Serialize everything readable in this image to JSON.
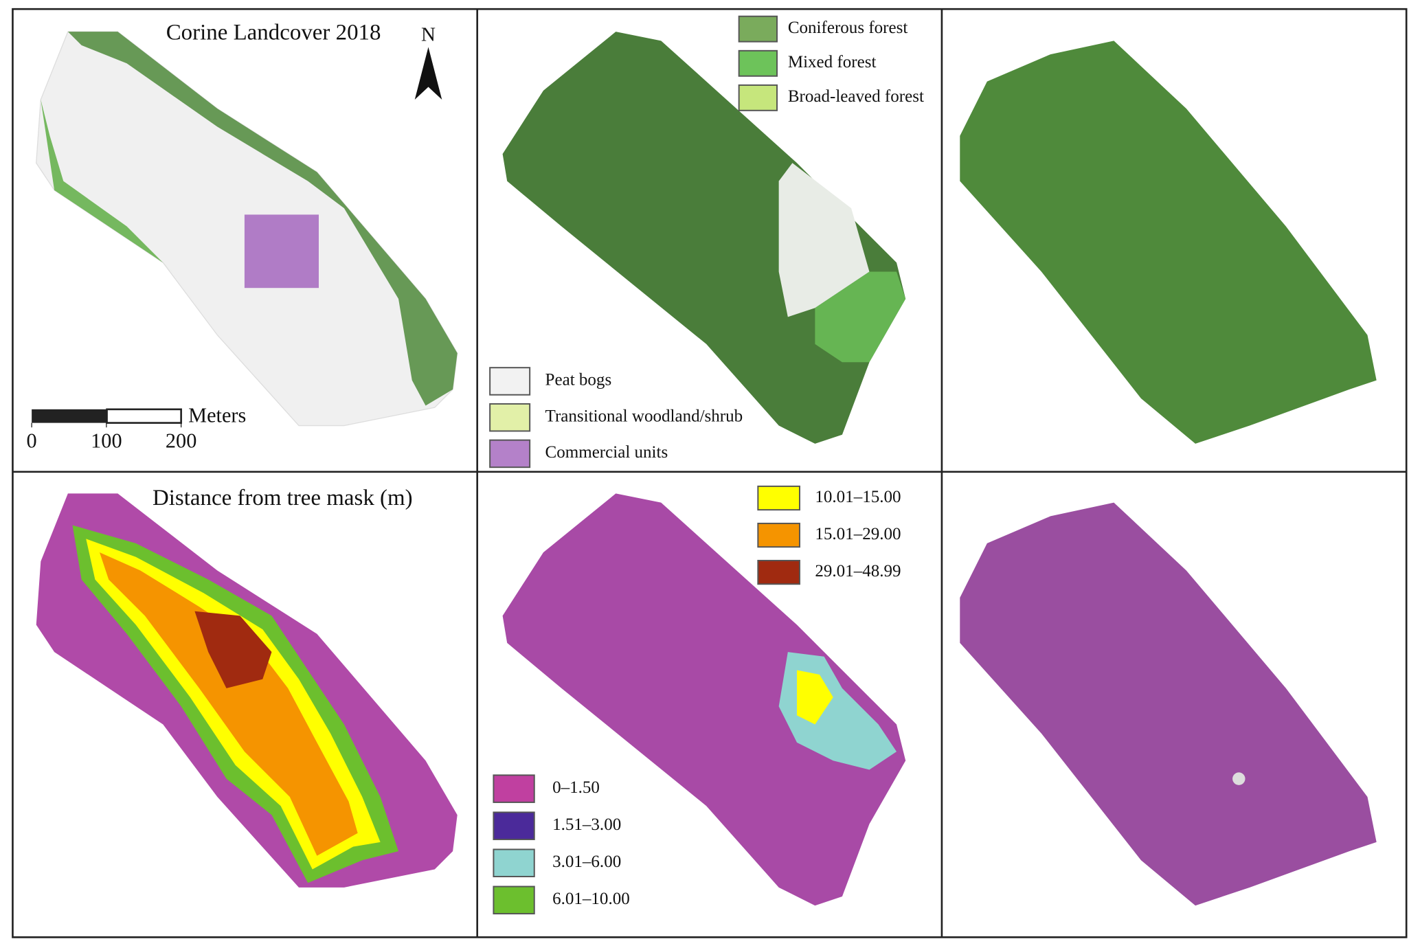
{
  "landcover": {
    "title": "Corine Landcover 2018",
    "north": "N",
    "scale_bar": {
      "unit": "Meters",
      "ticks": [
        0,
        100,
        200
      ]
    },
    "legend": [
      {
        "label": "Coniferous forest",
        "color": "#7aab5c"
      },
      {
        "label": "Mixed forest",
        "color": "#6dc35a"
      },
      {
        "label": "Broad-leaved forest",
        "color": "#c6e67c"
      },
      {
        "label": "Peat bogs",
        "color": "#f2f2f2"
      },
      {
        "label": "Transitional woodland/shrub",
        "color": "#e2f0a8"
      },
      {
        "label": "Commercial units",
        "color": "#b481c9"
      }
    ]
  },
  "distance": {
    "title": "Distance from tree mask (m)",
    "legend": [
      {
        "label": "10.01–15.00",
        "color": "#ffff00"
      },
      {
        "label": "15.01–29.00",
        "color": "#f59400"
      },
      {
        "label": "29.01–48.99",
        "color": "#a02a10"
      },
      {
        "label": "0–1.50",
        "color": "#c040a0"
      },
      {
        "label": "1.51–3.00",
        "color": "#4b2a9a"
      },
      {
        "label": "3.01–6.00",
        "color": "#8fd4d0"
      },
      {
        "label": "6.01–10.00",
        "color": "#6cbf2e"
      }
    ]
  }
}
